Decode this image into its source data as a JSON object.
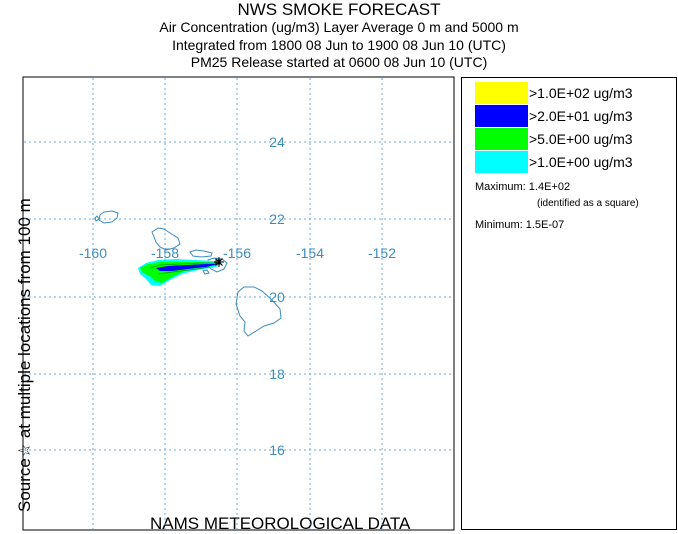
{
  "header": {
    "title": "NWS SMOKE FORECAST",
    "line2": "Air Concentration (ug/m3) Layer Average    0 m and  5000 m",
    "line3": "Integrated from 1800 08 Jun to 1900 08 Jun 10 (UTC)",
    "line4": "PM25 Release started at 0600 08 Jun 10 (UTC)"
  },
  "side_label": "Source☆    at multiple locations        from   100 m",
  "bottom_label": "NAMS METEOROLOGICAL DATA",
  "map": {
    "lon_labels": [
      "-160",
      "-158",
      "-156",
      "-154",
      "-152"
    ],
    "lat_labels": [
      "24",
      "22",
      "20",
      "18",
      "16"
    ],
    "grid_color": "#6fa8dc",
    "label_color": "#3c8dbc",
    "coast_color": "#3c8dbc"
  },
  "legend": {
    "items": [
      {
        "label": ">1.0E+02 ug/m3",
        "color": "#ffff00"
      },
      {
        "label": ">2.0E+01 ug/m3",
        "color": "#0000ff"
      },
      {
        "label": ">5.0E+00 ug/m3",
        "color": "#00ff00"
      },
      {
        "label": ">1.0E+00 ug/m3",
        "color": "#00ffff"
      }
    ],
    "max_label": "Maximum: 1.4E+02",
    "max_note": "(identified as a square)",
    "min_label": "Minimum: 1.5E-07"
  }
}
